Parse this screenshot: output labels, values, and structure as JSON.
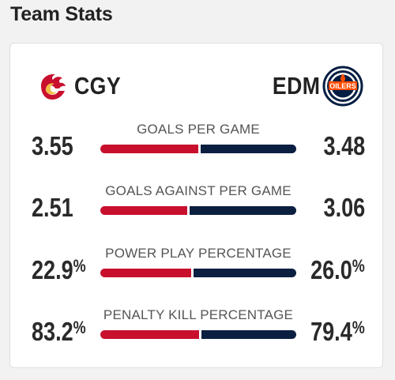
{
  "section": {
    "title": "Team Stats"
  },
  "teams": {
    "home": {
      "abbr": "CGY",
      "logo": "flames-logo-icon",
      "color": "#c8102e"
    },
    "away": {
      "abbr": "EDM",
      "logo": "oilers-logo-icon",
      "color": "#0b1f41",
      "logo_text": "OILERS"
    }
  },
  "stats": [
    {
      "label": "GOALS PER GAME",
      "home": "3.55",
      "away": "3.48",
      "unit": "",
      "home_share": 0.505
    },
    {
      "label": "GOALS AGAINST PER GAME",
      "home": "2.51",
      "away": "3.06",
      "unit": "",
      "home_share": 0.45
    },
    {
      "label": "POWER PLAY PERCENTAGE",
      "home": "22.9",
      "away": "26.0",
      "unit": "%",
      "home_share": 0.468
    },
    {
      "label": "PENALTY KILL PERCENTAGE",
      "home": "83.2",
      "away": "79.4",
      "unit": "%",
      "home_share": 0.512
    }
  ]
}
